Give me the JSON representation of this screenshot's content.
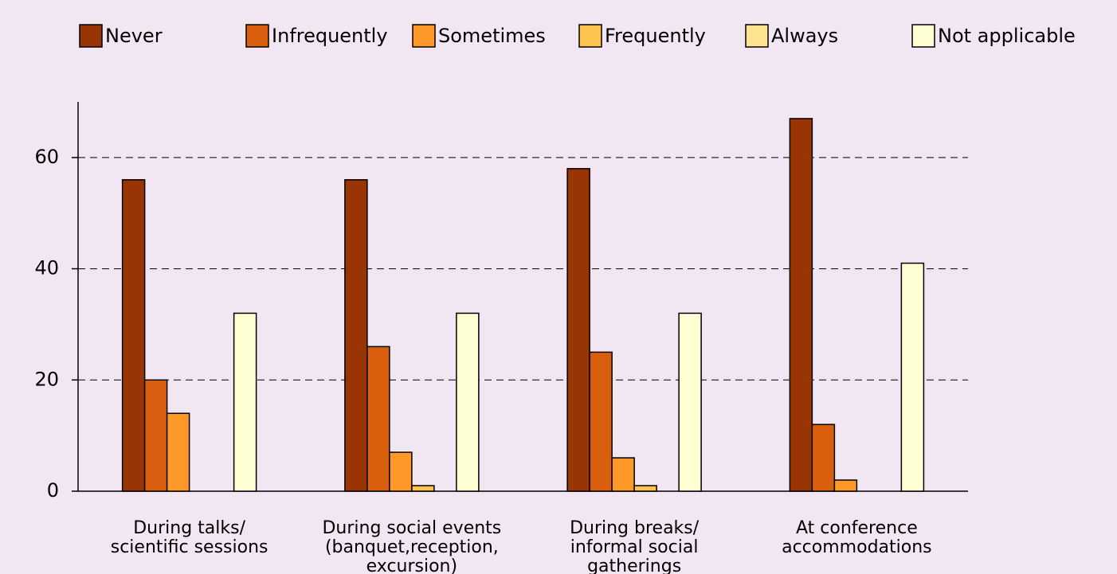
{
  "chart_data": {
    "type": "bar",
    "categories": [
      [
        "During talks/",
        "scientific sessions"
      ],
      [
        "During social events",
        "(banquet,reception,",
        "excursion)"
      ],
      [
        "During breaks/",
        "informal social",
        "gatherings"
      ],
      [
        "At conference",
        "accommodations"
      ]
    ],
    "series": [
      {
        "name": "Never",
        "color": "#993404",
        "values": [
          56,
          56,
          58,
          67
        ]
      },
      {
        "name": "Infrequently",
        "color": "#d95f0e",
        "values": [
          20,
          26,
          25,
          12
        ]
      },
      {
        "name": "Sometimes",
        "color": "#fe9929",
        "values": [
          14,
          7,
          6,
          2
        ]
      },
      {
        "name": "Frequently",
        "color": "#fec44f",
        "values": [
          0,
          1,
          1,
          0
        ]
      },
      {
        "name": "Always",
        "color": "#fee391",
        "values": [
          0,
          0,
          0,
          0
        ]
      },
      {
        "name": "Not applicable",
        "color": "#ffffd4",
        "values": [
          32,
          32,
          32,
          41
        ]
      }
    ],
    "ylim": [
      0,
      70
    ],
    "yticks": [
      0,
      20,
      40,
      60
    ],
    "grid": true,
    "legend": "top"
  }
}
